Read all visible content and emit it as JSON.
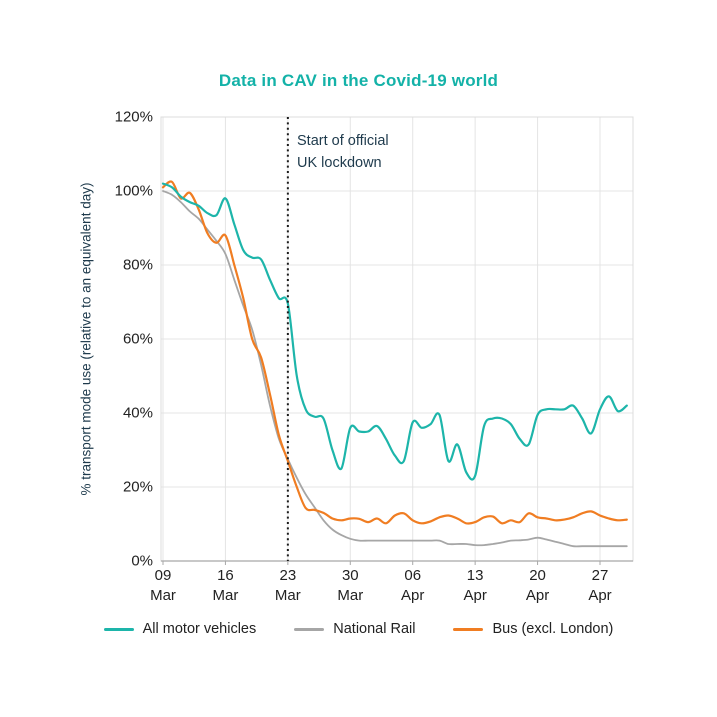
{
  "title": "Data in CAV in the Covid-19 world",
  "annotation": {
    "line1": "Start of official",
    "line2": "UK lockdown"
  },
  "y_axis": {
    "title": "% transport mode use (relative to an equivalent day)",
    "tick_labels": [
      "0%",
      "20%",
      "40%",
      "60%",
      "80%",
      "100%",
      "120%"
    ]
  },
  "x_axis": {
    "tick_labels": [
      "09 Mar",
      "16 Mar",
      "23 Mar",
      "30 Mar",
      "06 Apr",
      "13 Apr",
      "20 Apr",
      "27 Apr"
    ]
  },
  "colors": {
    "title_teal": "#14b2a8",
    "annotation_text": "#1e3a4c",
    "tick_text": "#222222",
    "gridline": "#e4e4e4",
    "axis_line": "#a8a8a8",
    "lockdown_line": "#1a1a1a"
  },
  "chart_data": {
    "type": "line",
    "title": "Data in CAV in the Covid-19 world",
    "xlabel": "",
    "ylabel": "% transport mode use (relative to an equivalent day)",
    "ylim": [
      0,
      120
    ],
    "grid": true,
    "legend_position": "bottom",
    "frequency": "daily",
    "x_tick_labels": [
      "09 Mar",
      "16 Mar",
      "23 Mar",
      "30 Mar",
      "06 Apr",
      "13 Apr",
      "20 Apr",
      "27 Apr"
    ],
    "annotation": "Start of official UK lockdown",
    "lockdown_date": "23 Mar",
    "lockdown_index": 14,
    "dates": [
      "09 Mar",
      "10 Mar",
      "11 Mar",
      "12 Mar",
      "13 Mar",
      "14 Mar",
      "15 Mar",
      "16 Mar",
      "17 Mar",
      "18 Mar",
      "19 Mar",
      "20 Mar",
      "21 Mar",
      "22 Mar",
      "23 Mar",
      "24 Mar",
      "25 Mar",
      "26 Mar",
      "27 Mar",
      "28 Mar",
      "29 Mar",
      "30 Mar",
      "31 Mar",
      "01 Apr",
      "02 Apr",
      "03 Apr",
      "04 Apr",
      "05 Apr",
      "06 Apr",
      "07 Apr",
      "08 Apr",
      "09 Apr",
      "10 Apr",
      "11 Apr",
      "12 Apr",
      "13 Apr",
      "14 Apr",
      "15 Apr",
      "16 Apr",
      "17 Apr",
      "18 Apr",
      "19 Apr",
      "20 Apr",
      "21 Apr",
      "22 Apr",
      "23 Apr",
      "24 Apr",
      "25 Apr",
      "26 Apr",
      "27 Apr",
      "28 Apr",
      "29 Apr",
      "30 Apr"
    ],
    "series": [
      {
        "name": "All motor vehicles",
        "color": "#1db5aa",
        "values": [
          102,
          101,
          98.5,
          97,
          96,
          94,
          93.5,
          98,
          91,
          84,
          82,
          81.5,
          76,
          71,
          69.5,
          50,
          41,
          39,
          38.5,
          30,
          25,
          36,
          35,
          35,
          36.5,
          33,
          28.5,
          27,
          37.5,
          36,
          37,
          39.5,
          27,
          31.5,
          24,
          23,
          36.5,
          38.5,
          38.5,
          37,
          33,
          31.5,
          39.5,
          41,
          41,
          41,
          42,
          38.5,
          34.5,
          41,
          44.5,
          40.5,
          42
        ]
      },
      {
        "name": "National Rail",
        "color": "#a6a6a6",
        "values": [
          100,
          99,
          97,
          94.5,
          92.5,
          89.5,
          86.5,
          83,
          76,
          69,
          62.5,
          53,
          42,
          33,
          27.5,
          22.5,
          18,
          14.5,
          11,
          8.5,
          7,
          6,
          5.5,
          5.5,
          5.5,
          5.5,
          5.5,
          5.5,
          5.5,
          5.5,
          5.5,
          5.5,
          4.6,
          4.6,
          4.6,
          4.3,
          4.3,
          4.6,
          5,
          5.5,
          5.6,
          5.8,
          6.3,
          5.8,
          5.2,
          4.6,
          4,
          4,
          4,
          4,
          4,
          4,
          4
        ]
      },
      {
        "name": "Bus (excl. London)",
        "color": "#f07d22",
        "values": [
          101,
          102.5,
          98,
          99.5,
          95,
          88.5,
          86,
          88,
          80,
          71,
          60,
          55,
          45,
          34,
          27,
          20,
          14.3,
          13.8,
          13,
          11.5,
          11,
          11.5,
          11.4,
          10.5,
          11.5,
          10.2,
          12.3,
          12.9,
          11,
          10.2,
          10.7,
          11.8,
          12.3,
          11.5,
          10.2,
          10.5,
          11.8,
          12,
          10.2,
          11,
          10.5,
          12.9,
          11.8,
          11.5,
          11,
          11.2,
          11.8,
          12.9,
          13.4,
          12.3,
          11.5,
          11,
          11.2
        ]
      }
    ]
  }
}
